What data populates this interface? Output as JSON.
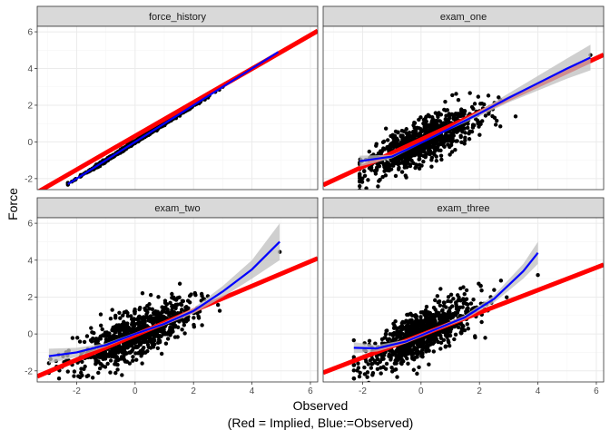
{
  "chart_data": {
    "type": "scatter",
    "title": "",
    "xlabel": "Observed",
    "xlabel_line2": "(Red = Implied, Blue:=Observed)",
    "ylabel": "Force",
    "xlim": [
      -3.35,
      6.25
    ],
    "ylim": [
      -2.6,
      6.3
    ],
    "x_ticks": [
      -2,
      0,
      2,
      4,
      6
    ],
    "y_ticks": [
      -2,
      0,
      2,
      4,
      6
    ],
    "grid": true,
    "colors": {
      "panel_bg": "#ffffff",
      "panel_border": "#333333",
      "strip_bg": "#d9d9d9",
      "grid_major": "#ebebeb",
      "grid_minor": "#f5f5f5",
      "points": "#000000",
      "implied_line": "#ff0000",
      "observed_line": "#0000ff",
      "ribbon": "#bfbfbf"
    },
    "panels": [
      {
        "name": "force_history",
        "points_spec": {
          "n": 700,
          "seed": 11,
          "xmin": -2.3,
          "xmax": 4.9,
          "xmean": 0.2,
          "xsd": 1.0,
          "slope": 1.0,
          "intercept": 0.0,
          "noise": 0.04
        },
        "implied_line": [
          [
            -3.35,
            -2.75
          ],
          [
            6.25,
            6.05
          ]
        ],
        "observed_curve": [
          [
            -2.3,
            -2.3
          ],
          [
            0,
            0
          ],
          [
            2,
            2
          ],
          [
            4.9,
            4.9
          ]
        ],
        "ribbon": []
      },
      {
        "name": "exam_one",
        "points_spec": {
          "n": 900,
          "seed": 23,
          "xmin": -2.1,
          "xmax": 5.8,
          "xmean": 0.0,
          "xsd": 0.95,
          "slope": 0.72,
          "intercept": -0.05,
          "noise": 0.55
        },
        "implied_line": [
          [
            -3.35,
            -2.35
          ],
          [
            6.25,
            4.75
          ]
        ],
        "observed_curve": [
          [
            -2.1,
            -1.05
          ],
          [
            -1,
            -0.8
          ],
          [
            0,
            -0.05
          ],
          [
            1,
            0.75
          ],
          [
            2,
            1.55
          ],
          [
            3,
            2.4
          ],
          [
            4,
            3.2
          ],
          [
            5,
            4.0
          ],
          [
            5.8,
            4.6
          ]
        ],
        "ribbon": [
          [
            -2.1,
            -1.35,
            -0.75
          ],
          [
            -1,
            -0.9,
            -0.7
          ],
          [
            0,
            -0.1,
            0.0
          ],
          [
            1,
            0.68,
            0.82
          ],
          [
            2,
            1.4,
            1.7
          ],
          [
            3,
            2.15,
            2.65
          ],
          [
            4,
            2.8,
            3.6
          ],
          [
            5,
            3.45,
            4.55
          ],
          [
            5.8,
            3.9,
            5.3
          ]
        ]
      },
      {
        "name": "exam_two",
        "points_spec": {
          "n": 900,
          "seed": 37,
          "xmin": -2.95,
          "xmax": 4.95,
          "xmean": 0.0,
          "xsd": 1.0,
          "slope": 0.68,
          "intercept": 0.0,
          "noise": 0.6
        },
        "implied_line": [
          [
            -3.35,
            -2.3
          ],
          [
            6.25,
            4.1
          ]
        ],
        "observed_curve": [
          [
            -2.95,
            -1.2
          ],
          [
            -2,
            -1.0
          ],
          [
            -1,
            -0.6
          ],
          [
            0,
            0.0
          ],
          [
            1,
            0.55
          ],
          [
            2,
            1.25
          ],
          [
            3,
            2.3
          ],
          [
            4,
            3.5
          ],
          [
            4.95,
            5.0
          ]
        ],
        "ribbon": [
          [
            -2.95,
            -1.6,
            -0.8
          ],
          [
            -2,
            -1.25,
            -0.75
          ],
          [
            -1,
            -0.7,
            -0.5
          ],
          [
            0,
            -0.07,
            0.07
          ],
          [
            1,
            0.47,
            0.63
          ],
          [
            2,
            1.1,
            1.4
          ],
          [
            3,
            2.0,
            2.6
          ],
          [
            4,
            3.0,
            4.0
          ],
          [
            4.95,
            4.0,
            6.0
          ]
        ]
      },
      {
        "name": "exam_three",
        "points_spec": {
          "n": 900,
          "seed": 53,
          "xmin": -2.3,
          "xmax": 4.0,
          "xmean": 0.0,
          "xsd": 0.9,
          "slope": 0.75,
          "intercept": 0.0,
          "noise": 0.6
        },
        "implied_line": [
          [
            -3.35,
            -2.1
          ],
          [
            6.25,
            3.75
          ]
        ],
        "observed_curve": [
          [
            -2.3,
            -0.75
          ],
          [
            -1.5,
            -0.78
          ],
          [
            -0.5,
            -0.4
          ],
          [
            0.5,
            0.25
          ],
          [
            1.5,
            0.9
          ],
          [
            2.5,
            1.9
          ],
          [
            3.5,
            3.4
          ],
          [
            4.0,
            4.4
          ]
        ],
        "ribbon": [
          [
            -2.3,
            -1.05,
            -0.45
          ],
          [
            -1.5,
            -0.95,
            -0.6
          ],
          [
            -0.5,
            -0.5,
            -0.3
          ],
          [
            0.5,
            0.17,
            0.33
          ],
          [
            1.5,
            0.78,
            1.02
          ],
          [
            2.5,
            1.7,
            2.1
          ],
          [
            3.5,
            3.0,
            3.8
          ],
          [
            4.0,
            3.8,
            5.0
          ]
        ]
      }
    ]
  }
}
